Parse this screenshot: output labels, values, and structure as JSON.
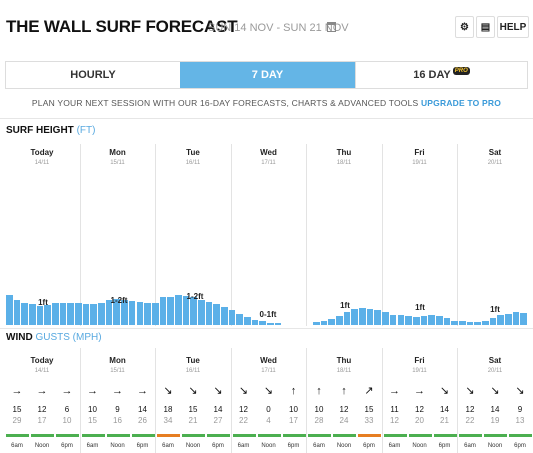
{
  "header": {
    "title": "THE WALL SURF FORECAST",
    "dates": "SUN 14 NOV - SUN 21 NOV",
    "help_label": "HELP",
    "settings_icon": "gear-icon",
    "print_icon": "printer-icon",
    "calendar_icon": "calendar-icon"
  },
  "tabs": {
    "hourly": "HOURLY",
    "seven_day": "7 DAY",
    "sixteen_day": "16 DAY",
    "pro_badge": "PRO",
    "active": "7 DAY"
  },
  "promo": {
    "text": "PLAN YOUR NEXT SESSION WITH OUR 16-DAY FORECASTS, CHARTS & ADVANCED TOOLS",
    "link": "UPGRADE TO PRO"
  },
  "surf": {
    "title": "SURF HEIGHT",
    "unit": "(FT)",
    "days": [
      {
        "name": "Today",
        "date": "14/11",
        "label": "1ft"
      },
      {
        "name": "Mon",
        "date": "15/11",
        "label": "1-2ft"
      },
      {
        "name": "Tue",
        "date": "16/11",
        "label": "1-2ft"
      },
      {
        "name": "Wed",
        "date": "17/11",
        "label": "0-1ft"
      },
      {
        "name": "Thu",
        "date": "18/11",
        "label": "1ft"
      },
      {
        "name": "Fri",
        "date": "19/11",
        "label": "1ft"
      },
      {
        "name": "Sat",
        "date": "20/11",
        "label": "1ft"
      }
    ],
    "bar_heights": [
      1.0,
      0.82,
      0.75,
      0.7,
      0.65,
      0.68,
      0.72,
      0.75,
      0.74,
      0.72,
      0.7,
      0.7,
      0.75,
      0.82,
      0.88,
      0.85,
      0.8,
      0.78,
      0.75,
      0.72,
      0.92,
      0.95,
      1.0,
      0.98,
      0.92,
      0.85,
      0.78,
      0.7,
      0.6,
      0.5,
      0.38,
      0.28,
      0.18,
      0.12,
      0.08,
      0.05,
      0.0,
      0.0,
      0.0,
      0.0,
      0.1,
      0.14,
      0.2,
      0.3,
      0.42,
      0.55,
      0.58,
      0.55,
      0.5,
      0.42,
      0.35,
      0.32,
      0.3,
      0.28,
      0.3,
      0.32,
      0.3,
      0.22,
      0.15,
      0.12,
      0.1,
      0.1,
      0.15,
      0.22,
      0.32,
      0.38,
      0.42,
      0.4
    ],
    "color": "#5bb0e8"
  },
  "wind": {
    "title": "WIND",
    "unit": "GUSTS (MPH)",
    "days": [
      {
        "name": "Today",
        "date": "14/11"
      },
      {
        "name": "Mon",
        "date": "15/11"
      },
      {
        "name": "Tue",
        "date": "16/11"
      },
      {
        "name": "Wed",
        "date": "17/11"
      },
      {
        "name": "Thu",
        "date": "18/11"
      },
      {
        "name": "Fri",
        "date": "19/11"
      },
      {
        "name": "Sat",
        "date": "20/11"
      }
    ],
    "times": [
      "6am",
      "Noon",
      "6pm"
    ],
    "entries": [
      {
        "arrow": "→",
        "speed": "15",
        "gust": "29",
        "color": "#4caf50"
      },
      {
        "arrow": "→",
        "speed": "12",
        "gust": "17",
        "color": "#4caf50"
      },
      {
        "arrow": "→",
        "speed": "6",
        "gust": "10",
        "color": "#4caf50"
      },
      {
        "arrow": "→",
        "speed": "10",
        "gust": "15",
        "color": "#4caf50"
      },
      {
        "arrow": "→",
        "speed": "9",
        "gust": "16",
        "color": "#4caf50"
      },
      {
        "arrow": "→",
        "speed": "14",
        "gust": "26",
        "color": "#4caf50"
      },
      {
        "arrow": "↘",
        "speed": "18",
        "gust": "34",
        "color": "#e67e22"
      },
      {
        "arrow": "↘",
        "speed": "15",
        "gust": "21",
        "color": "#4caf50"
      },
      {
        "arrow": "↘",
        "speed": "14",
        "gust": "27",
        "color": "#4caf50"
      },
      {
        "arrow": "↘",
        "speed": "12",
        "gust": "22",
        "color": "#4caf50"
      },
      {
        "arrow": "↘",
        "speed": "0",
        "gust": "4",
        "color": "#4caf50"
      },
      {
        "arrow": "↑",
        "speed": "10",
        "gust": "17",
        "color": "#4caf50"
      },
      {
        "arrow": "↑",
        "speed": "10",
        "gust": "28",
        "color": "#4caf50"
      },
      {
        "arrow": "↑",
        "speed": "12",
        "gust": "24",
        "color": "#4caf50"
      },
      {
        "arrow": "↗",
        "speed": "15",
        "gust": "33",
        "color": "#e67e22"
      },
      {
        "arrow": "→",
        "speed": "11",
        "gust": "12",
        "color": "#4caf50"
      },
      {
        "arrow": "→",
        "speed": "12",
        "gust": "20",
        "color": "#4caf50"
      },
      {
        "arrow": "↘",
        "speed": "14",
        "gust": "21",
        "color": "#4caf50"
      },
      {
        "arrow": "↘",
        "speed": "12",
        "gust": "22",
        "color": "#4caf50"
      },
      {
        "arrow": "↘",
        "speed": "14",
        "gust": "19",
        "color": "#4caf50"
      },
      {
        "arrow": "↘",
        "speed": "9",
        "gust": "13",
        "color": "#4caf50"
      }
    ]
  }
}
